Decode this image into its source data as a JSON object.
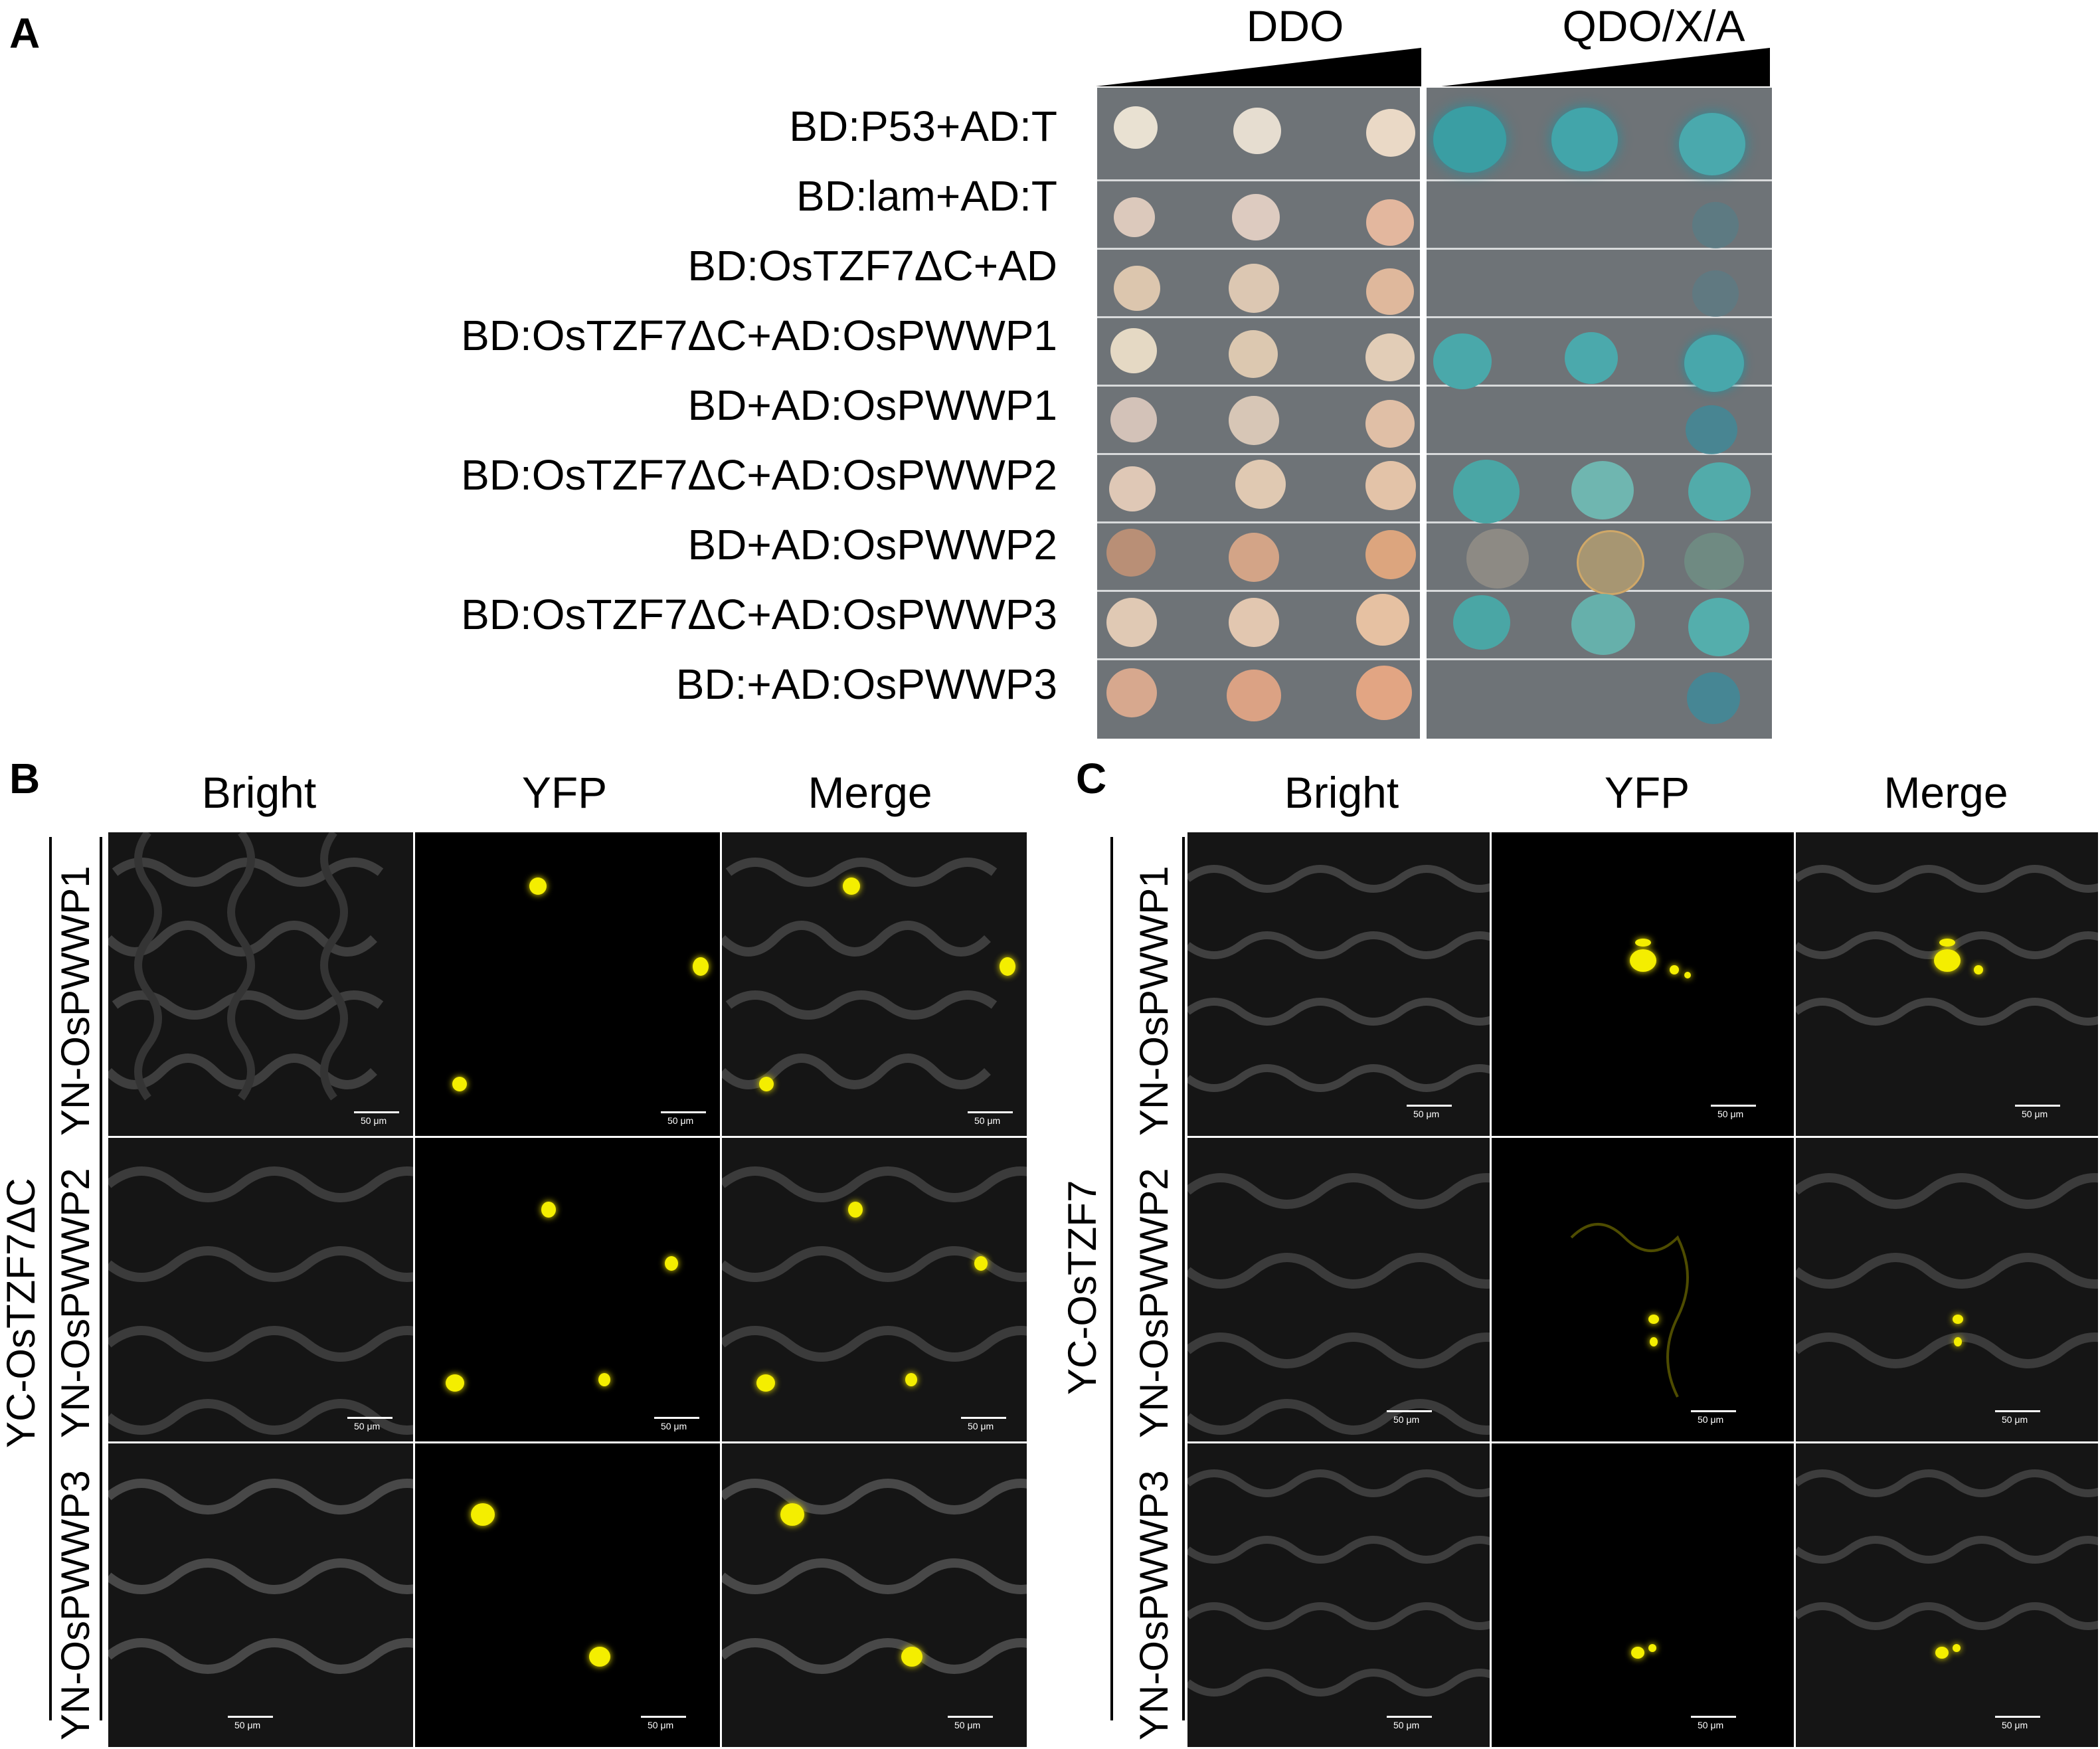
{
  "panels": {
    "a": {
      "letter": "A",
      "conditions": [
        "DDO",
        "QDO/X/A"
      ],
      "rows": [
        "BD:P53+AD:T",
        "BD:lam+AD:T",
        "BD:OsTZF7ΔC+AD",
        "BD:OsTZF7ΔC+AD:OsPWWP1",
        "BD+AD:OsPWWP1",
        "BD:OsTZF7ΔC+AD:OsPWWP2",
        "BD+AD:OsPWWP2",
        "BD:OsTZF7ΔC+AD:OsPWWP3",
        "BD:+AD:OsPWWP3"
      ]
    },
    "b": {
      "letter": "B",
      "columns": [
        "Bright",
        "YFP",
        "Merge"
      ],
      "group_label": "YC-OsTZF7ΔC",
      "row_labels": [
        "YN-OsPWWP1",
        "YN-OsPWWP2",
        "YN-OsPWWP3"
      ],
      "scale_label": "50 μm"
    },
    "c": {
      "letter": "C",
      "columns": [
        "Bright",
        "YFP",
        "Merge"
      ],
      "group_label": "YC-OsTZF7",
      "row_labels": [
        "YN-OsPWWP1",
        "YN-OsPWWP2",
        "YN-OsPWWP3"
      ],
      "scale_label": "50 μm"
    }
  },
  "colors": {
    "plate": "#6e7377",
    "colony_ddo": "#e8d9c4",
    "colony_blue": "#3fa3a6",
    "yfp": "#f4ee00"
  }
}
